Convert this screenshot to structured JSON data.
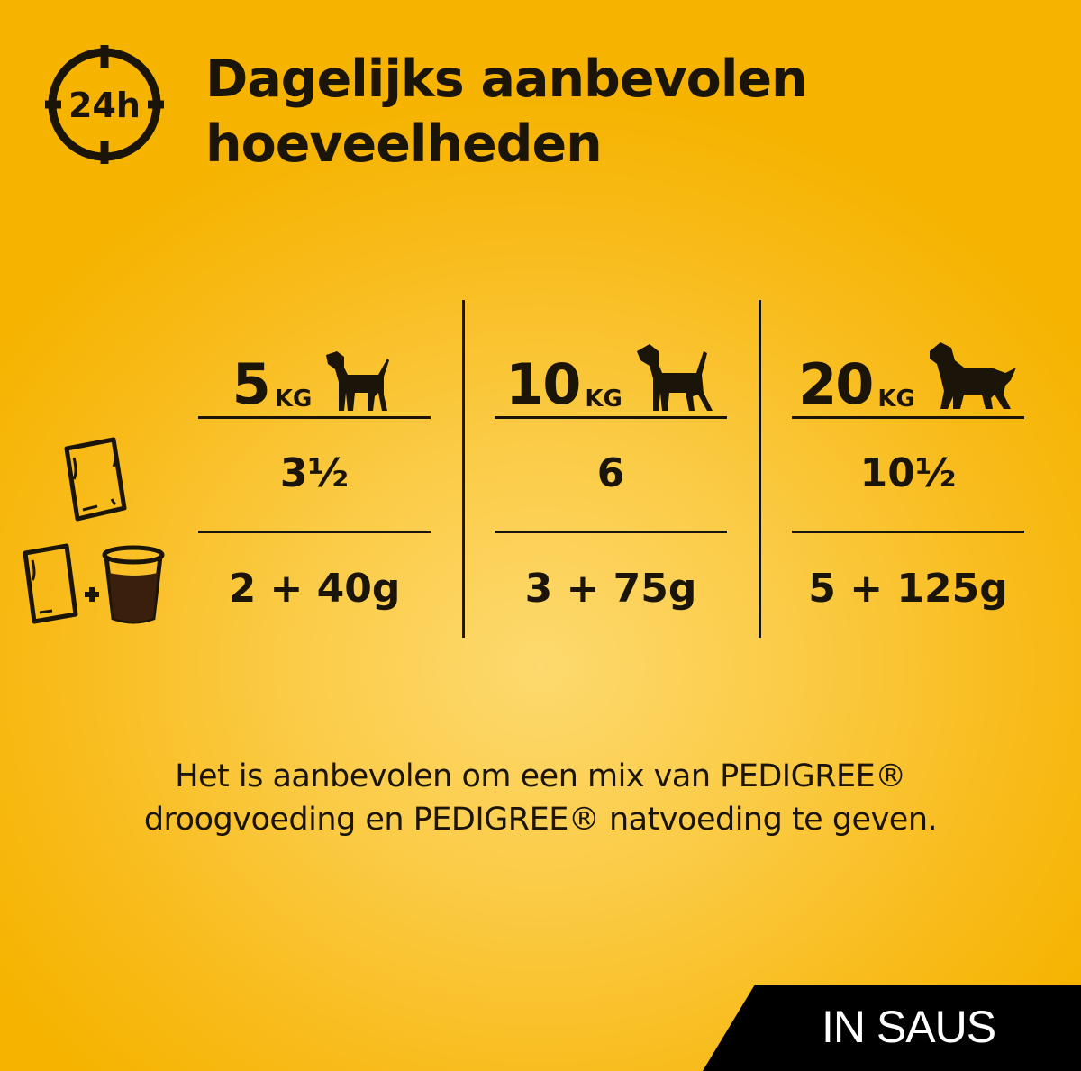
{
  "header": {
    "clock_label": "24h",
    "title_line1": "Dagelijks aanbevolen",
    "title_line2": "hoeveelheden"
  },
  "table": {
    "columns": [
      {
        "weight": "5",
        "unit": "KG",
        "dog_icon": "small-dog-icon"
      },
      {
        "weight": "10",
        "unit": "KG",
        "dog_icon": "medium-dog-icon"
      },
      {
        "weight": "20",
        "unit": "KG",
        "dog_icon": "large-dog-icon"
      }
    ],
    "rows": [
      {
        "icon": "pouch-icon",
        "values": [
          "3½",
          "6",
          "10½"
        ]
      },
      {
        "icon": "pouch-plus-dry-food-cup-icon",
        "values": [
          "2 + 40g",
          "3 + 75g",
          "5 + 125g"
        ]
      }
    ]
  },
  "footer": {
    "line1": "Het is aanbevolen om een mix van PEDIGREE®",
    "line2": "droogvoeding en PEDIGREE® natvoeding te geven."
  },
  "badge": {
    "label": "IN SAUS"
  },
  "colors": {
    "background": "#f8bb1a",
    "text": "#1b1409",
    "badge": "#000000"
  }
}
